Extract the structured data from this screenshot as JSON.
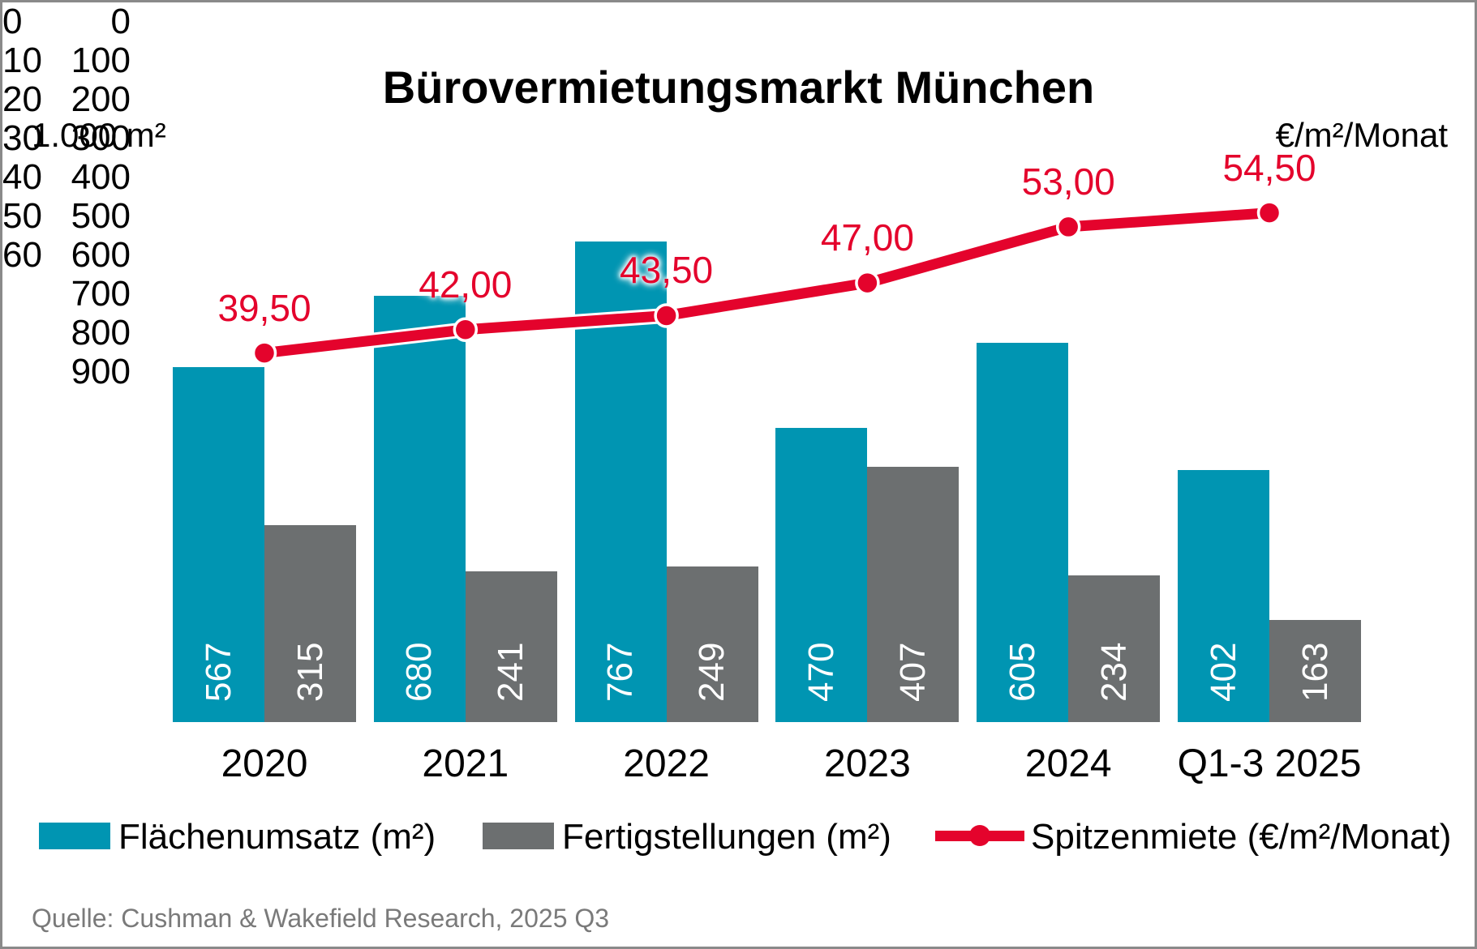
{
  "title": "Bürovermietungsmarkt München",
  "left_axis": {
    "unit": "1.000 m²",
    "ticks": [
      0,
      100,
      200,
      300,
      400,
      500,
      600,
      700,
      800,
      900
    ]
  },
  "right_axis": {
    "unit": "€/m²/Monat",
    "ticks": [
      0,
      10,
      20,
      30,
      40,
      50,
      60
    ]
  },
  "legend": {
    "items": [
      {
        "label": "Flächenumsatz (m²)",
        "type": "bar"
      },
      {
        "label": "Fertigstellungen (m²)",
        "type": "bar"
      },
      {
        "label": "Spitzenmiete (€/m²/Monat)",
        "type": "line"
      }
    ]
  },
  "source": "Quelle: Cushman & Wakefield Research, 2025 Q3",
  "colors": {
    "turnover_teal": "#0095b2",
    "completions_gray": "#6c6f70",
    "rent_red": "#e4032c",
    "source_gray": "#7a7a7a"
  },
  "chart_data": {
    "type": "bar",
    "subtype": "grouped bars with secondary-axis line",
    "title": "Bürovermietungsmarkt München",
    "categories": [
      "2020",
      "2021",
      "2022",
      "2023",
      "2024",
      "Q1-3 2025"
    ],
    "series": [
      {
        "name": "Flächenumsatz (m²)",
        "type": "bar",
        "axis": "left",
        "values": [
          567,
          680,
          767,
          470,
          605,
          402
        ],
        "color": "#0095b2"
      },
      {
        "name": "Fertigstellungen (m²)",
        "type": "bar",
        "axis": "left",
        "values": [
          315,
          241,
          249,
          407,
          234,
          163
        ],
        "color": "#6c6f70"
      },
      {
        "name": "Spitzenmiete (€/m²/Monat)",
        "type": "line",
        "axis": "right",
        "values": [
          39.5,
          42.0,
          43.5,
          47.0,
          53.0,
          54.5
        ],
        "display_labels": [
          "39,50",
          "42,00",
          "43,50",
          "47,00",
          "53,00",
          "54,50"
        ],
        "color": "#e4032c"
      }
    ],
    "left_axis_label": "1.000 m²",
    "right_axis_label": "€/m²/Monat",
    "left_ylim": [
      0,
      900
    ],
    "right_ylim": [
      0,
      60
    ],
    "gridlines": false,
    "legend_position": "bottom",
    "bar_value_labels": "white, rotated 270°, inside bar bottom",
    "line_value_labels": "red, above markers, German decimal comma"
  }
}
